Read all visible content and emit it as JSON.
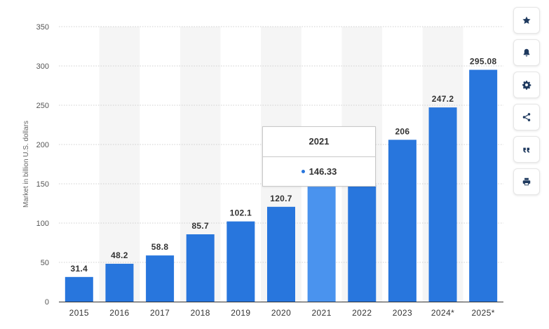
{
  "chart_data": {
    "type": "bar",
    "categories": [
      "2015",
      "2016",
      "2017",
      "2018",
      "2019",
      "2020",
      "2021",
      "2022",
      "2023",
      "2024*",
      "2025*"
    ],
    "values": [
      31.4,
      48.2,
      58.8,
      85.7,
      102.1,
      120.7,
      146.33,
      148.5,
      206,
      247.2,
      295.08
    ],
    "data_labels": [
      "31.4",
      "48.2",
      "58.8",
      "85.7",
      "102.1",
      "120.7",
      "",
      "",
      "206",
      "247.2",
      "295.08"
    ],
    "ylabel": "Market in billion U.S. dollars",
    "xlabel": "",
    "ylim": [
      0,
      350
    ],
    "yticks": [
      "0",
      "50",
      "100",
      "150",
      "200",
      "250",
      "300",
      "350"
    ],
    "highlighted_category": "2021",
    "colors": {
      "bar": "#2876dd",
      "bar_highlight": "#4a93ee",
      "band": "#f5f5f5",
      "grid": "#d0d0d0"
    },
    "grid": true,
    "legend": "none"
  },
  "tooltip": {
    "title": "2021",
    "value": "146.33"
  },
  "toolbar": {
    "icons": [
      "star-icon",
      "bell-icon",
      "gear-icon",
      "share-icon",
      "quote-icon",
      "print-icon"
    ]
  }
}
